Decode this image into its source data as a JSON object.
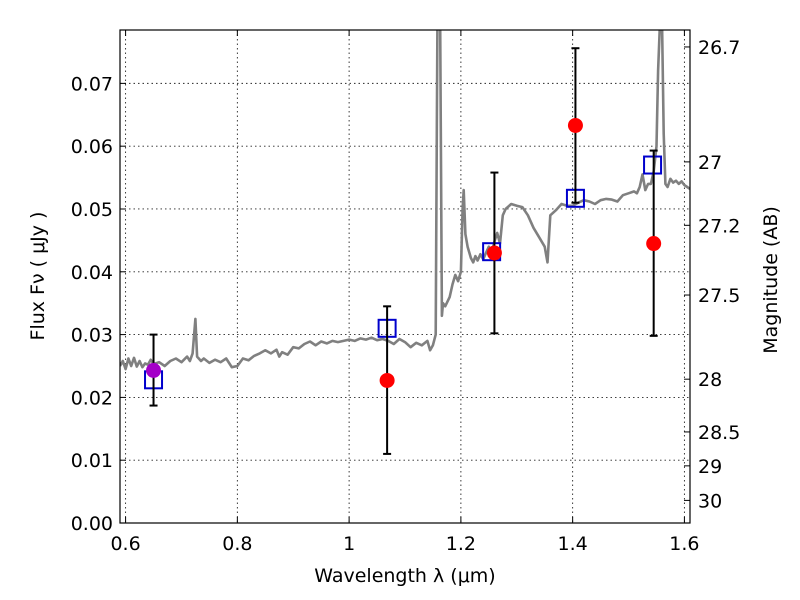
{
  "chart_data": {
    "type": "scatter",
    "xlabel": "Wavelength  λ (μm)",
    "ylabel": "Flux  Fν  ( μJy )",
    "ylabel_right": "Magnitude (AB)",
    "xlim": [
      0.59,
      1.61
    ],
    "ylim": [
      0.0,
      0.0785
    ],
    "grid": true,
    "x_ticks": [
      0.6,
      0.8,
      1.0,
      1.2,
      1.4,
      1.6
    ],
    "x_tick_labels": [
      "0.6",
      "0.8",
      "1",
      "1.2",
      "1.4",
      "1.6"
    ],
    "y_ticks": [
      0.0,
      0.01,
      0.02,
      0.03,
      0.04,
      0.05,
      0.06,
      0.07
    ],
    "y_tick_labels": [
      "0.00",
      "0.01",
      "0.02",
      "0.03",
      "0.04",
      "0.05",
      "0.06",
      "0.07"
    ],
    "right_ticks": [
      {
        "flux": 0.0758,
        "label": "26.7"
      },
      {
        "flux": 0.0575,
        "label": "27"
      },
      {
        "flux": 0.0474,
        "label": "27.2"
      },
      {
        "flux": 0.0363,
        "label": "27.5"
      },
      {
        "flux": 0.0229,
        "label": "28"
      },
      {
        "flux": 0.0145,
        "label": "28.5"
      },
      {
        "flux": 0.0091,
        "label": "29"
      },
      {
        "flux": 0.0036,
        "label": "30"
      }
    ],
    "colors": {
      "spectrum": "#808080",
      "observed": "#ff0000",
      "observed_highlight": "#a400c8",
      "model": "#0000cc",
      "errorbar": "#000000"
    },
    "series": [
      {
        "type": "line",
        "points": [
          [
            0.59,
            0.025
          ],
          [
            0.595,
            0.0258
          ],
          [
            0.6,
            0.0245
          ],
          [
            0.605,
            0.0262
          ],
          [
            0.61,
            0.025
          ],
          [
            0.615,
            0.0263
          ],
          [
            0.62,
            0.0249
          ],
          [
            0.625,
            0.0258
          ],
          [
            0.63,
            0.0248
          ],
          [
            0.635,
            0.0254
          ],
          [
            0.64,
            0.0252
          ],
          [
            0.645,
            0.026
          ],
          [
            0.65,
            0.0253
          ],
          [
            0.66,
            0.0256
          ],
          [
            0.67,
            0.025
          ],
          [
            0.68,
            0.0258
          ],
          [
            0.69,
            0.0262
          ],
          [
            0.7,
            0.0256
          ],
          [
            0.71,
            0.0265
          ],
          [
            0.715,
            0.0258
          ],
          [
            0.72,
            0.027
          ],
          [
            0.725,
            0.0325
          ],
          [
            0.728,
            0.0265
          ],
          [
            0.735,
            0.0258
          ],
          [
            0.74,
            0.0262
          ],
          [
            0.75,
            0.0255
          ],
          [
            0.76,
            0.026
          ],
          [
            0.77,
            0.0256
          ],
          [
            0.78,
            0.0262
          ],
          [
            0.79,
            0.0248
          ],
          [
            0.8,
            0.025
          ],
          [
            0.81,
            0.0262
          ],
          [
            0.82,
            0.0259
          ],
          [
            0.83,
            0.0266
          ],
          [
            0.84,
            0.027
          ],
          [
            0.85,
            0.0275
          ],
          [
            0.86,
            0.027
          ],
          [
            0.87,
            0.0276
          ],
          [
            0.875,
            0.0265
          ],
          [
            0.88,
            0.0272
          ],
          [
            0.89,
            0.0268
          ],
          [
            0.9,
            0.028
          ],
          [
            0.91,
            0.0278
          ],
          [
            0.92,
            0.0285
          ],
          [
            0.93,
            0.0289
          ],
          [
            0.94,
            0.0283
          ],
          [
            0.95,
            0.0289
          ],
          [
            0.96,
            0.0286
          ],
          [
            0.97,
            0.029
          ],
          [
            0.98,
            0.0288
          ],
          [
            0.99,
            0.029
          ],
          [
            1.0,
            0.0292
          ],
          [
            1.01,
            0.029
          ],
          [
            1.02,
            0.0294
          ],
          [
            1.03,
            0.0292
          ],
          [
            1.04,
            0.0295
          ],
          [
            1.05,
            0.0291
          ],
          [
            1.06,
            0.0293
          ],
          [
            1.07,
            0.029
          ],
          [
            1.08,
            0.0285
          ],
          [
            1.09,
            0.0293
          ],
          [
            1.1,
            0.0288
          ],
          [
            1.11,
            0.028
          ],
          [
            1.12,
            0.0287
          ],
          [
            1.13,
            0.0283
          ],
          [
            1.14,
            0.029
          ],
          [
            1.145,
            0.0275
          ],
          [
            1.15,
            0.0283
          ],
          [
            1.155,
            0.03
          ],
          [
            1.158,
            0.079
          ],
          [
            1.163,
            0.079
          ],
          [
            1.166,
            0.033
          ],
          [
            1.168,
            0.035
          ],
          [
            1.172,
            0.0345
          ],
          [
            1.18,
            0.036
          ],
          [
            1.185,
            0.038
          ],
          [
            1.19,
            0.0395
          ],
          [
            1.195,
            0.0385
          ],
          [
            1.2,
            0.04
          ],
          [
            1.203,
            0.05
          ],
          [
            1.205,
            0.053
          ],
          [
            1.208,
            0.046
          ],
          [
            1.212,
            0.044
          ],
          [
            1.218,
            0.0422
          ],
          [
            1.222,
            0.0415
          ],
          [
            1.226,
            0.0425
          ],
          [
            1.23,
            0.0418
          ],
          [
            1.235,
            0.0428
          ],
          [
            1.24,
            0.042
          ],
          [
            1.245,
            0.043
          ],
          [
            1.25,
            0.044
          ],
          [
            1.255,
            0.043
          ],
          [
            1.26,
            0.0448
          ],
          [
            1.265,
            0.0462
          ],
          [
            1.27,
            0.0445
          ],
          [
            1.275,
            0.049
          ],
          [
            1.28,
            0.05
          ],
          [
            1.29,
            0.0508
          ],
          [
            1.3,
            0.0505
          ],
          [
            1.31,
            0.0503
          ],
          [
            1.32,
            0.049
          ],
          [
            1.33,
            0.047
          ],
          [
            1.34,
            0.0455
          ],
          [
            1.35,
            0.044
          ],
          [
            1.355,
            0.0415
          ],
          [
            1.36,
            0.049
          ],
          [
            1.37,
            0.0498
          ],
          [
            1.38,
            0.0508
          ],
          [
            1.39,
            0.0505
          ],
          [
            1.4,
            0.0505
          ],
          [
            1.41,
            0.051
          ],
          [
            1.42,
            0.0514
          ],
          [
            1.43,
            0.0512
          ],
          [
            1.44,
            0.0508
          ],
          [
            1.45,
            0.0514
          ],
          [
            1.46,
            0.0516
          ],
          [
            1.47,
            0.0515
          ],
          [
            1.48,
            0.0512
          ],
          [
            1.49,
            0.0522
          ],
          [
            1.5,
            0.0525
          ],
          [
            1.51,
            0.0528
          ],
          [
            1.515,
            0.0525
          ],
          [
            1.52,
            0.0535
          ],
          [
            1.525,
            0.0555
          ],
          [
            1.53,
            0.053
          ],
          [
            1.535,
            0.054
          ],
          [
            1.54,
            0.054
          ],
          [
            1.545,
            0.056
          ],
          [
            1.55,
            0.06
          ],
          [
            1.553,
            0.072
          ],
          [
            1.556,
            0.079
          ],
          [
            1.56,
            0.079
          ],
          [
            1.563,
            0.062
          ],
          [
            1.566,
            0.054
          ],
          [
            1.57,
            0.0535
          ],
          [
            1.575,
            0.0548
          ],
          [
            1.58,
            0.0542
          ],
          [
            1.585,
            0.0545
          ],
          [
            1.59,
            0.054
          ],
          [
            1.595,
            0.0544
          ],
          [
            1.6,
            0.0538
          ],
          [
            1.605,
            0.0535
          ],
          [
            1.61,
            0.0532
          ]
        ]
      },
      {
        "type": "model",
        "marker": "open-square",
        "points": [
          {
            "x": 0.65,
            "y": 0.0228
          },
          {
            "x": 1.068,
            "y": 0.031
          },
          {
            "x": 1.255,
            "y": 0.0432
          },
          {
            "x": 1.405,
            "y": 0.0517
          },
          {
            "x": 1.543,
            "y": 0.057
          }
        ]
      },
      {
        "type": "observed",
        "marker": "filled-circle",
        "points": [
          {
            "x": 0.65,
            "y": 0.0243,
            "yerr_low": 0.0187,
            "yerr_high": 0.03,
            "highlight": true
          },
          {
            "x": 1.068,
            "y": 0.0227,
            "yerr_low": 0.011,
            "yerr_high": 0.0345
          },
          {
            "x": 1.26,
            "y": 0.043,
            "yerr_low": 0.0302,
            "yerr_high": 0.0558
          },
          {
            "x": 1.405,
            "y": 0.0633,
            "yerr_low": 0.051,
            "yerr_high": 0.0756
          },
          {
            "x": 1.545,
            "y": 0.0445,
            "yerr_low": 0.0298,
            "yerr_high": 0.0593
          }
        ]
      }
    ]
  }
}
